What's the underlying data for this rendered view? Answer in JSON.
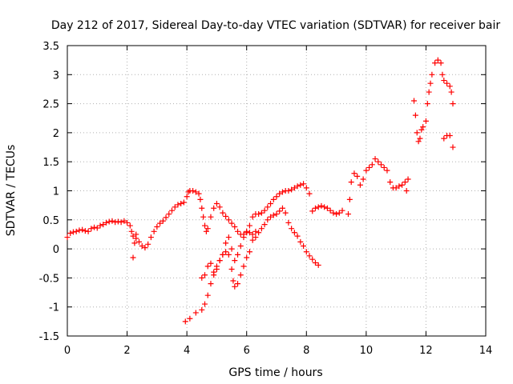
{
  "chart_data": {
    "type": "scatter",
    "title": "Day 212 of 2017, Sidereal Day-to-day VTEC variation (SDTVAR) for receiver bair",
    "xlabel": "GPS time / hours",
    "ylabel": "SDTVAR / TECUs",
    "xlim": [
      0,
      14
    ],
    "ylim": [
      -1.5,
      3.5
    ],
    "xticks": [
      0,
      2,
      4,
      6,
      8,
      10,
      12,
      14
    ],
    "yticks": [
      -1.5,
      -1,
      -0.5,
      0,
      0.5,
      1,
      1.5,
      2,
      2.5,
      3,
      3.5
    ],
    "xtick_labels": [
      "0",
      "2",
      "4",
      "6",
      "8",
      "10",
      "12",
      "14"
    ],
    "ytick_labels": [
      "-1.5",
      "-1",
      "-0.5",
      "0",
      "0.5",
      "1",
      "1.5",
      "2",
      "2.5",
      "3",
      "3.5"
    ],
    "grid": true,
    "marker": "+",
    "color": "#ff0000",
    "series": [
      {
        "points": [
          [
            0.0,
            0.2
          ],
          [
            0.1,
            0.27
          ],
          [
            0.2,
            0.29
          ],
          [
            0.3,
            0.3
          ],
          [
            0.4,
            0.32
          ],
          [
            0.5,
            0.33
          ],
          [
            0.6,
            0.31
          ],
          [
            0.7,
            0.3
          ],
          [
            0.8,
            0.35
          ],
          [
            0.9,
            0.37
          ],
          [
            1.0,
            0.36
          ],
          [
            1.1,
            0.4
          ],
          [
            1.2,
            0.42
          ],
          [
            1.3,
            0.45
          ],
          [
            1.4,
            0.47
          ],
          [
            1.5,
            0.48
          ],
          [
            1.6,
            0.46
          ],
          [
            1.7,
            0.47
          ],
          [
            1.8,
            0.46
          ],
          [
            1.9,
            0.48
          ],
          [
            2.0,
            0.45
          ],
          [
            2.1,
            0.4
          ],
          [
            2.15,
            0.3
          ],
          [
            2.2,
            0.22
          ],
          [
            2.3,
            0.18
          ],
          [
            2.4,
            0.12
          ],
          [
            2.5,
            0.05
          ],
          [
            2.6,
            0.02
          ],
          [
            2.7,
            0.08
          ],
          [
            2.8,
            0.2
          ],
          [
            2.9,
            0.3
          ],
          [
            3.0,
            0.38
          ],
          [
            3.1,
            0.44
          ],
          [
            3.2,
            0.48
          ],
          [
            3.3,
            0.54
          ],
          [
            3.4,
            0.6
          ],
          [
            3.5,
            0.66
          ],
          [
            3.6,
            0.72
          ],
          [
            3.7,
            0.76
          ],
          [
            3.8,
            0.78
          ],
          [
            3.9,
            0.8
          ],
          [
            4.0,
            0.9
          ],
          [
            4.05,
            0.98
          ],
          [
            4.1,
            1.0
          ],
          [
            4.2,
            1.0
          ],
          [
            4.3,
            0.98
          ],
          [
            4.4,
            0.95
          ],
          [
            4.45,
            0.85
          ],
          [
            4.5,
            0.7
          ],
          [
            4.55,
            0.55
          ],
          [
            4.6,
            0.4
          ],
          [
            4.65,
            0.3
          ],
          [
            4.7,
            0.35
          ],
          [
            4.8,
            0.55
          ],
          [
            4.9,
            0.7
          ],
          [
            5.0,
            0.78
          ],
          [
            5.1,
            0.72
          ],
          [
            5.2,
            0.62
          ],
          [
            5.3,
            0.56
          ],
          [
            5.4,
            0.5
          ],
          [
            5.5,
            0.44
          ],
          [
            5.6,
            0.38
          ],
          [
            5.7,
            0.3
          ],
          [
            5.8,
            0.25
          ],
          [
            5.9,
            0.25
          ],
          [
            6.0,
            0.28
          ],
          [
            6.1,
            0.4
          ],
          [
            6.2,
            0.55
          ],
          [
            6.3,
            0.6
          ],
          [
            6.4,
            0.6
          ],
          [
            6.5,
            0.62
          ],
          [
            6.6,
            0.66
          ],
          [
            6.7,
            0.72
          ],
          [
            6.8,
            0.78
          ],
          [
            6.9,
            0.85
          ],
          [
            7.0,
            0.9
          ],
          [
            7.1,
            0.95
          ],
          [
            7.2,
            0.98
          ],
          [
            7.3,
            1.0
          ],
          [
            7.4,
            1.0
          ],
          [
            7.5,
            1.02
          ],
          [
            7.6,
            1.05
          ],
          [
            7.7,
            1.08
          ],
          [
            7.8,
            1.1
          ],
          [
            7.9,
            1.12
          ],
          [
            8.0,
            1.05
          ],
          [
            8.1,
            0.95
          ],
          [
            8.2,
            0.65
          ],
          [
            8.3,
            0.7
          ],
          [
            8.4,
            0.72
          ],
          [
            8.5,
            0.74
          ],
          [
            8.6,
            0.72
          ],
          [
            8.7,
            0.7
          ],
          [
            8.8,
            0.66
          ],
          [
            8.9,
            0.62
          ],
          [
            9.0,
            0.6
          ],
          [
            9.1,
            0.62
          ],
          [
            9.2,
            0.66
          ],
          [
            9.4,
            0.6
          ],
          [
            9.45,
            0.85
          ],
          [
            9.5,
            1.15
          ],
          [
            9.6,
            1.3
          ],
          [
            9.7,
            1.25
          ],
          [
            9.8,
            1.1
          ],
          [
            9.9,
            1.2
          ],
          [
            10.0,
            1.35
          ],
          [
            10.1,
            1.4
          ],
          [
            10.2,
            1.45
          ],
          [
            10.3,
            1.55
          ],
          [
            10.4,
            1.5
          ],
          [
            10.5,
            1.45
          ],
          [
            10.6,
            1.4
          ],
          [
            10.7,
            1.35
          ],
          [
            10.8,
            1.15
          ],
          [
            10.9,
            1.05
          ],
          [
            11.0,
            1.05
          ],
          [
            11.1,
            1.08
          ],
          [
            11.2,
            1.1
          ],
          [
            11.3,
            1.15
          ],
          [
            11.4,
            1.2
          ],
          [
            11.35,
            1.0
          ],
          [
            11.6,
            2.55
          ],
          [
            11.65,
            2.3
          ],
          [
            11.7,
            2.0
          ],
          [
            11.75,
            1.85
          ],
          [
            11.8,
            1.9
          ],
          [
            11.85,
            2.05
          ],
          [
            11.9,
            2.1
          ],
          [
            12.0,
            2.2
          ],
          [
            12.05,
            2.5
          ],
          [
            12.1,
            2.7
          ],
          [
            12.15,
            2.85
          ],
          [
            12.2,
            3.0
          ],
          [
            12.3,
            3.2
          ],
          [
            12.4,
            3.25
          ],
          [
            12.5,
            3.2
          ],
          [
            12.55,
            3.0
          ],
          [
            12.6,
            2.9
          ],
          [
            12.7,
            2.85
          ],
          [
            12.8,
            2.8
          ],
          [
            12.85,
            2.7
          ],
          [
            12.9,
            2.5
          ],
          [
            12.6,
            1.9
          ],
          [
            12.7,
            1.95
          ],
          [
            12.8,
            1.95
          ],
          [
            12.9,
            1.75
          ],
          [
            2.2,
            -0.15
          ],
          [
            2.25,
            0.1
          ],
          [
            2.3,
            0.25
          ],
          [
            3.95,
            -1.25
          ],
          [
            4.1,
            -1.2
          ],
          [
            4.3,
            -1.1
          ],
          [
            4.5,
            -1.05
          ],
          [
            4.6,
            -0.95
          ],
          [
            4.7,
            -0.8
          ],
          [
            4.8,
            -0.6
          ],
          [
            4.9,
            -0.4
          ],
          [
            5.0,
            -0.3
          ],
          [
            5.1,
            -0.2
          ],
          [
            5.2,
            -0.1
          ],
          [
            5.3,
            -0.05
          ],
          [
            5.4,
            -0.1
          ],
          [
            5.5,
            -0.35
          ],
          [
            5.55,
            -0.55
          ],
          [
            5.6,
            -0.65
          ],
          [
            5.7,
            -0.6
          ],
          [
            5.8,
            -0.45
          ],
          [
            5.9,
            -0.3
          ],
          [
            6.0,
            -0.15
          ],
          [
            6.1,
            -0.05
          ],
          [
            6.2,
            0.15
          ],
          [
            6.3,
            0.2
          ],
          [
            6.4,
            0.28
          ],
          [
            6.5,
            0.35
          ],
          [
            6.6,
            0.42
          ],
          [
            6.7,
            0.5
          ],
          [
            6.8,
            0.55
          ],
          [
            6.9,
            0.58
          ],
          [
            7.0,
            0.6
          ],
          [
            7.1,
            0.65
          ],
          [
            7.2,
            0.7
          ],
          [
            7.3,
            0.62
          ],
          [
            7.4,
            0.45
          ],
          [
            7.5,
            0.35
          ],
          [
            7.6,
            0.28
          ],
          [
            7.7,
            0.22
          ],
          [
            7.8,
            0.12
          ],
          [
            7.9,
            0.05
          ],
          [
            8.0,
            -0.05
          ],
          [
            8.1,
            -0.12
          ],
          [
            8.2,
            -0.18
          ],
          [
            8.3,
            -0.24
          ],
          [
            8.4,
            -0.28
          ],
          [
            4.5,
            -0.5
          ],
          [
            4.6,
            -0.45
          ],
          [
            4.7,
            -0.3
          ],
          [
            4.8,
            -0.25
          ],
          [
            4.9,
            -0.45
          ],
          [
            5.0,
            -0.35
          ],
          [
            5.1,
            -0.2
          ],
          [
            5.2,
            -0.1
          ],
          [
            5.3,
            0.1
          ],
          [
            5.4,
            0.2
          ],
          [
            5.5,
            0.0
          ],
          [
            5.6,
            -0.2
          ],
          [
            5.7,
            -0.1
          ],
          [
            5.8,
            0.05
          ],
          [
            5.9,
            0.2
          ],
          [
            6.0,
            0.3
          ],
          [
            6.1,
            0.28
          ],
          [
            6.2,
            0.25
          ],
          [
            6.3,
            0.3
          ]
        ]
      }
    ]
  }
}
